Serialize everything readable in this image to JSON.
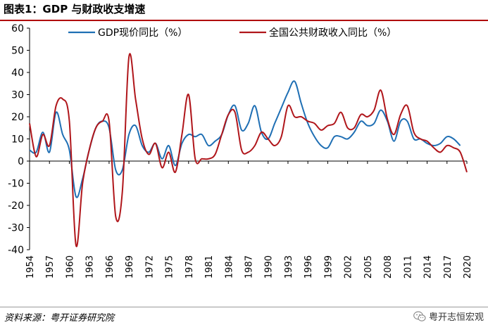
{
  "header": {
    "title": "图表1：GDP 与财政收支增速"
  },
  "footer": {
    "source": "资料来源：粤开证券研究院",
    "brand": "粤开志恒宏观",
    "brand_icon": "wechat-icon"
  },
  "colors": {
    "gdp": "#1f6fb4",
    "fiscal": "#b0161b",
    "title_rule": "#b00000"
  },
  "chart_data": {
    "type": "line",
    "title": "",
    "xlabel": "",
    "ylabel": "",
    "ylim": [
      -40,
      60
    ],
    "yticks": [
      -40,
      -30,
      -20,
      -10,
      0,
      10,
      20,
      30,
      40,
      50,
      60
    ],
    "xlim": [
      1954,
      2020
    ],
    "xticks": [
      1954,
      1957,
      1960,
      1963,
      1966,
      1969,
      1972,
      1975,
      1978,
      1981,
      1984,
      1987,
      1990,
      1993,
      1996,
      1999,
      2002,
      2005,
      2008,
      2011,
      2014,
      2017,
      2020
    ],
    "grid": false,
    "legend": "top",
    "series": [
      {
        "name": "GDP现价同比（%）",
        "color": "#1f6fb4",
        "x": [
          1954,
          1955,
          1956,
          1957,
          1958,
          1959,
          1960,
          1961,
          1962,
          1963,
          1964,
          1965,
          1966,
          1967,
          1968,
          1969,
          1970,
          1971,
          1972,
          1973,
          1974,
          1975,
          1976,
          1977,
          1978,
          1979,
          1980,
          1981,
          1982,
          1983,
          1984,
          1985,
          1986,
          1987,
          1988,
          1989,
          1990,
          1991,
          1992,
          1993,
          1994,
          1995,
          1996,
          1997,
          1998,
          1999,
          2000,
          2001,
          2002,
          2003,
          2004,
          2005,
          2006,
          2007,
          2008,
          2009,
          2010,
          2011,
          2012,
          2013,
          2014,
          2015,
          2016,
          2017,
          2018,
          2019
        ],
        "values": [
          5,
          4,
          13,
          4,
          22,
          12,
          5,
          -16,
          -8,
          5,
          15,
          18,
          15,
          -4,
          -4,
          12,
          16,
          7,
          4,
          8,
          1,
          7,
          -2,
          8,
          12,
          11,
          12,
          7,
          9,
          12,
          21,
          25,
          14,
          17,
          25,
          13,
          10,
          17,
          24,
          31,
          36,
          26,
          17,
          11,
          7,
          6,
          11,
          11,
          10,
          13,
          18,
          16,
          17,
          23,
          18,
          9,
          18,
          18,
          10,
          10,
          8,
          7,
          8,
          11,
          10,
          7
        ]
      },
      {
        "name": "全国公共财政收入同比（%）",
        "color": "#b0161b",
        "x": [
          1954,
          1955,
          1956,
          1957,
          1958,
          1959,
          1960,
          1961,
          1962,
          1963,
          1964,
          1965,
          1966,
          1967,
          1968,
          1969,
          1970,
          1971,
          1972,
          1973,
          1974,
          1975,
          1976,
          1977,
          1978,
          1979,
          1980,
          1981,
          1982,
          1983,
          1984,
          1985,
          1986,
          1987,
          1988,
          1989,
          1990,
          1991,
          1992,
          1993,
          1994,
          1995,
          1996,
          1997,
          1998,
          1999,
          2000,
          2001,
          2002,
          2003,
          2004,
          2005,
          2006,
          2007,
          2008,
          2009,
          2010,
          2011,
          2012,
          2013,
          2014,
          2015,
          2016,
          2017,
          2018,
          2019,
          2020
        ],
        "values": [
          17,
          2,
          12,
          7,
          25,
          28,
          18,
          -38,
          -10,
          5,
          15,
          18,
          18,
          -25,
          -14,
          47,
          28,
          10,
          3,
          8,
          -3,
          4,
          -5,
          12,
          30,
          1,
          1,
          1,
          3,
          12,
          21,
          22,
          5,
          4,
          7,
          13,
          10,
          7,
          11,
          25,
          20,
          20,
          18,
          17,
          14,
          16,
          17,
          22,
          15,
          15,
          21,
          20,
          23,
          32,
          19,
          12,
          21,
          25,
          13,
          10,
          9,
          6,
          4,
          7,
          6,
          4,
          -5
        ]
      }
    ]
  }
}
